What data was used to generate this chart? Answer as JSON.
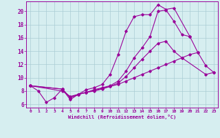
{
  "xlabel": "Windchill (Refroidissement éolien,°C)",
  "background_color": "#d6eef0",
  "grid_color": "#aaccd4",
  "line_color": "#990099",
  "xlim": [
    -0.5,
    23.5
  ],
  "ylim": [
    5.5,
    21.5
  ],
  "yticks": [
    6,
    8,
    10,
    12,
    14,
    16,
    18,
    20
  ],
  "xticks": [
    0,
    1,
    2,
    3,
    4,
    5,
    6,
    7,
    8,
    9,
    10,
    11,
    12,
    13,
    14,
    15,
    16,
    17,
    18,
    19,
    20,
    21,
    22,
    23
  ],
  "s1x": [
    0,
    1,
    2,
    3,
    4,
    5,
    6,
    7,
    8,
    9,
    10,
    11,
    12,
    13,
    14,
    15,
    16,
    17,
    18,
    20
  ],
  "s1y": [
    8.8,
    8.0,
    6.3,
    7.0,
    8.3,
    6.7,
    7.5,
    8.2,
    8.5,
    9.0,
    10.5,
    13.5,
    17.0,
    19.2,
    19.5,
    19.5,
    21.0,
    20.3,
    20.5,
    16.2
  ],
  "s2x": [
    0,
    4,
    5,
    6,
    7,
    8,
    9,
    10,
    11,
    12,
    13,
    14,
    15,
    16,
    17,
    18,
    19,
    20,
    21,
    22,
    23
  ],
  "s2y": [
    8.8,
    8.3,
    7.0,
    7.5,
    7.8,
    8.2,
    8.5,
    8.8,
    9.5,
    11.0,
    13.0,
    14.5,
    16.2,
    20.0,
    20.2,
    18.5,
    16.5,
    16.2,
    13.8,
    11.8,
    10.8
  ],
  "s3x": [
    0,
    4,
    5,
    6,
    7,
    8,
    9,
    10,
    11,
    12,
    13,
    14,
    15,
    16,
    17,
    18,
    19,
    20,
    21
  ],
  "s3y": [
    8.8,
    8.3,
    7.0,
    7.5,
    7.8,
    8.1,
    8.4,
    8.7,
    9.2,
    10.2,
    11.5,
    12.8,
    14.0,
    15.2,
    15.5,
    14.0,
    13.0,
    13.5,
    13.8
  ],
  "s4x": [
    0,
    4,
    5,
    6,
    7,
    8,
    9,
    10,
    11,
    12,
    13,
    14,
    15,
    16,
    17,
    18,
    19,
    22,
    23
  ],
  "s4y": [
    8.8,
    8.0,
    7.2,
    7.5,
    7.8,
    8.0,
    8.3,
    8.7,
    9.0,
    9.5,
    10.0,
    10.5,
    11.0,
    11.5,
    12.0,
    12.5,
    13.0,
    10.5,
    10.8
  ]
}
